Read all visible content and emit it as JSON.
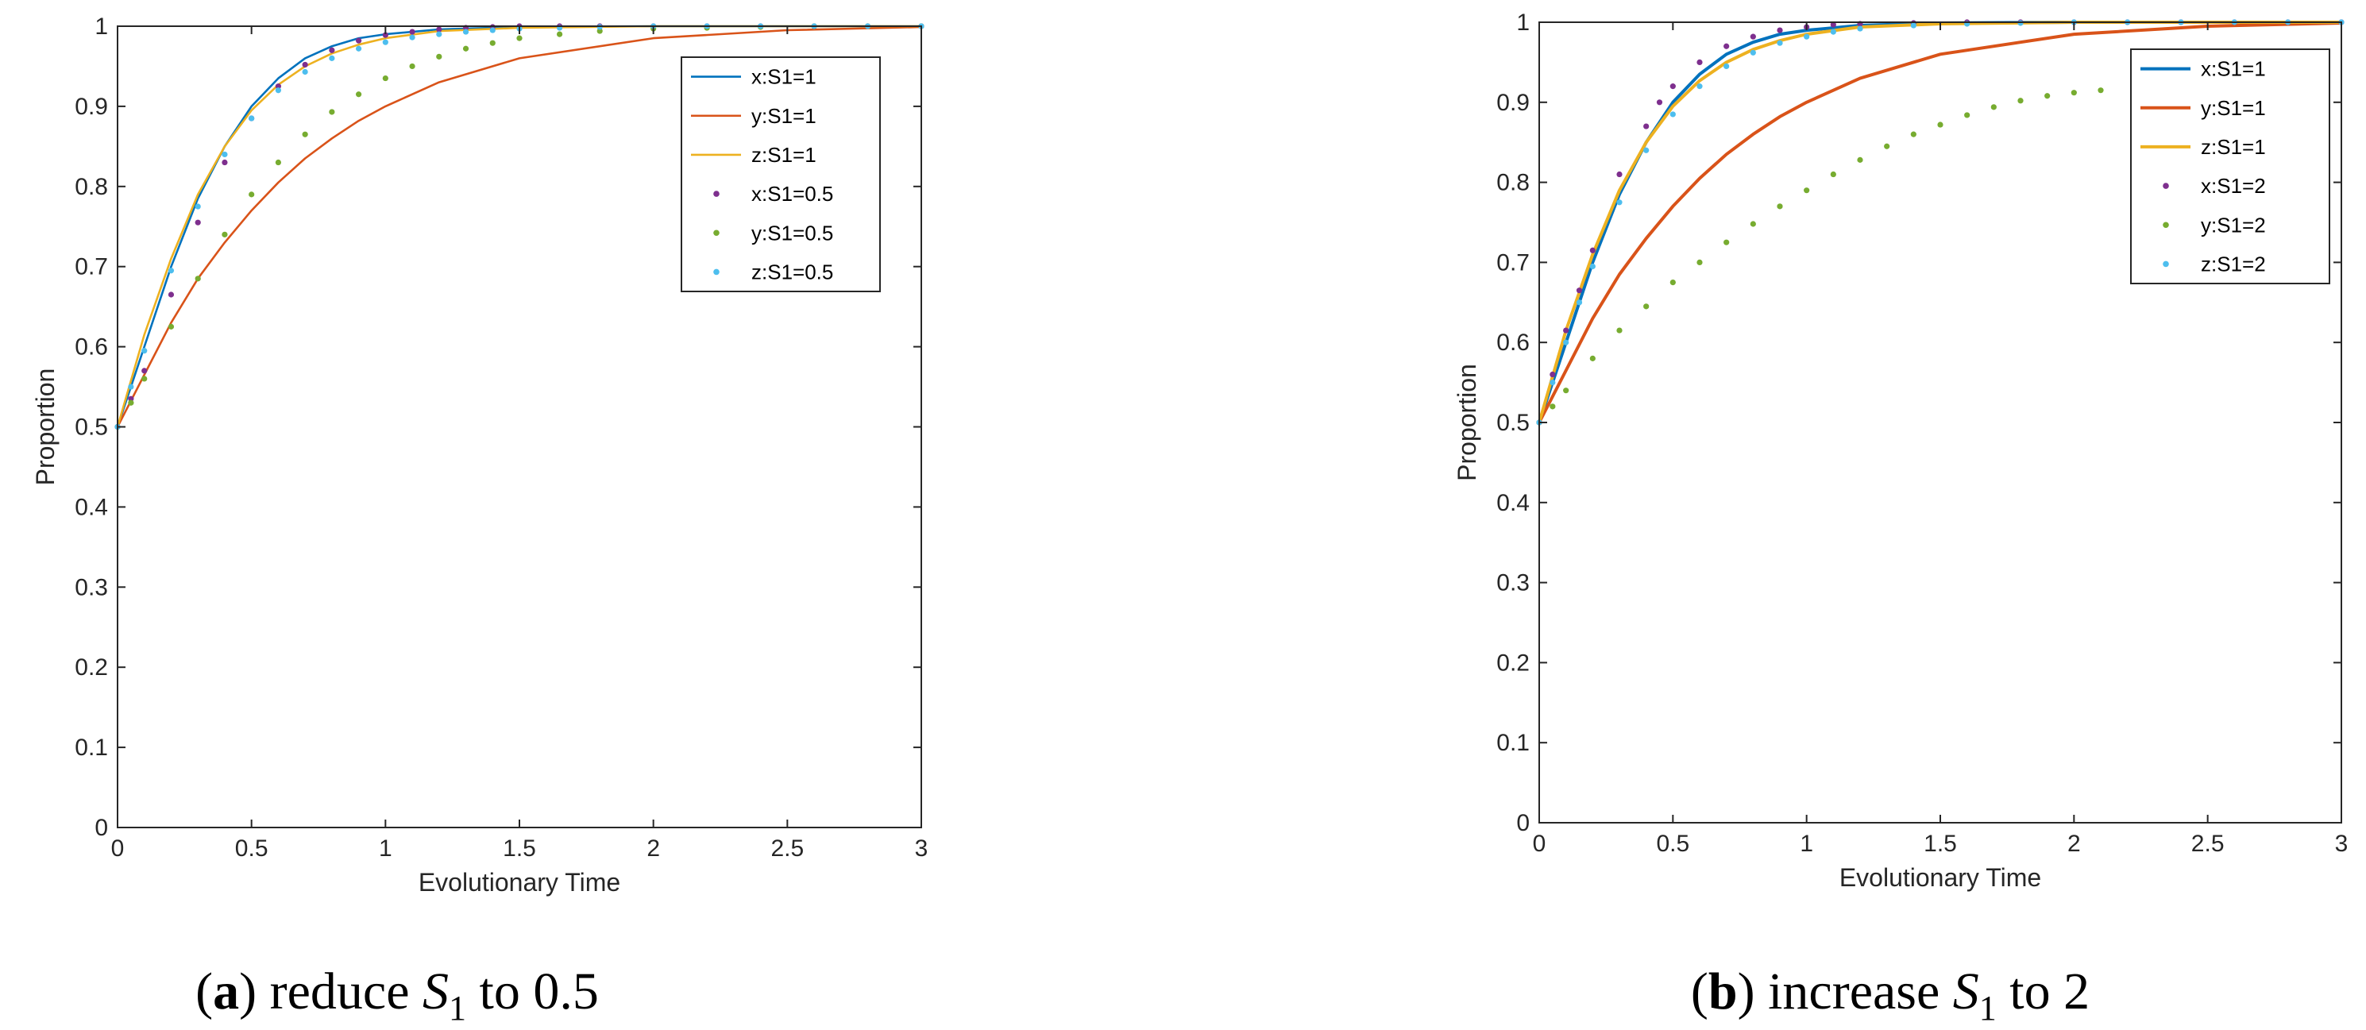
{
  "captions": [
    {
      "letter": "a",
      "text": " reduce ",
      "var": "S",
      "sub": "1",
      "tail": " to 0.5"
    },
    {
      "letter": "b",
      "text": " increase ",
      "var": "S",
      "sub": "1",
      "tail": " to 2"
    }
  ],
  "chart_data": [
    {
      "type": "line",
      "xlabel": "Evolutionary Time",
      "ylabel": "Proportion",
      "xlim": [
        0,
        3
      ],
      "ylim": [
        0,
        1
      ],
      "xticks": [
        "0",
        "0.5",
        "1",
        "1.5",
        "2",
        "2.5",
        "3"
      ],
      "yticks": [
        "0",
        "0.1",
        "0.2",
        "0.3",
        "0.4",
        "0.5",
        "0.6",
        "0.7",
        "0.8",
        "0.9",
        "1"
      ],
      "legend_position": "top-right",
      "series": [
        {
          "name": "x:S1=1",
          "style": "line",
          "color": "#0072BD",
          "x": [
            0,
            0.1,
            0.2,
            0.3,
            0.4,
            0.5,
            0.6,
            0.7,
            0.8,
            0.9,
            1.0,
            1.2,
            1.5,
            2.0,
            2.5,
            3.0
          ],
          "y": [
            0.5,
            0.6,
            0.7,
            0.785,
            0.85,
            0.9,
            0.935,
            0.96,
            0.975,
            0.985,
            0.99,
            0.996,
            0.999,
            1.0,
            1.0,
            1.0
          ]
        },
        {
          "name": "y:S1=1",
          "style": "line",
          "color": "#D95319",
          "x": [
            0,
            0.1,
            0.2,
            0.3,
            0.4,
            0.5,
            0.6,
            0.7,
            0.8,
            0.9,
            1.0,
            1.2,
            1.5,
            2.0,
            2.5,
            3.0
          ],
          "y": [
            0.5,
            0.565,
            0.63,
            0.685,
            0.73,
            0.77,
            0.805,
            0.835,
            0.86,
            0.882,
            0.9,
            0.93,
            0.96,
            0.985,
            0.995,
            0.999
          ]
        },
        {
          "name": "z:S1=1",
          "style": "line",
          "color": "#EDB120",
          "x": [
            0,
            0.1,
            0.2,
            0.3,
            0.4,
            0.5,
            0.6,
            0.7,
            0.8,
            0.9,
            1.0,
            1.2,
            1.5,
            2.0,
            2.5,
            3.0
          ],
          "y": [
            0.5,
            0.615,
            0.71,
            0.79,
            0.85,
            0.895,
            0.927,
            0.95,
            0.966,
            0.977,
            0.985,
            0.994,
            0.998,
            1.0,
            1.0,
            1.0
          ]
        },
        {
          "name": "x:S1=0.5",
          "style": "dots",
          "color": "#7E2F8E",
          "x": [
            0,
            0.05,
            0.1,
            0.2,
            0.3,
            0.4,
            0.5,
            0.6,
            0.7,
            0.8,
            0.9,
            1.0,
            1.1,
            1.2,
            1.3,
            1.4,
            1.5,
            1.65,
            1.8,
            2.0,
            2.2,
            2.4,
            2.6,
            2.8,
            3.0
          ],
          "y": [
            0.5,
            0.535,
            0.57,
            0.665,
            0.755,
            0.83,
            0.885,
            0.925,
            0.952,
            0.97,
            0.982,
            0.989,
            0.993,
            0.996,
            0.998,
            0.999,
            1.0,
            1.0,
            1.0,
            1.0,
            1.0,
            1.0,
            1.0,
            1.0,
            1.0
          ]
        },
        {
          "name": "y:S1=0.5",
          "style": "dots",
          "color": "#77AC30",
          "x": [
            0,
            0.05,
            0.1,
            0.2,
            0.3,
            0.4,
            0.5,
            0.6,
            0.7,
            0.8,
            0.9,
            1.0,
            1.1,
            1.2,
            1.3,
            1.4,
            1.5,
            1.65,
            1.8,
            2.0,
            2.2,
            2.4,
            2.6,
            2.8,
            3.0
          ],
          "y": [
            0.5,
            0.53,
            0.56,
            0.625,
            0.685,
            0.74,
            0.79,
            0.83,
            0.865,
            0.893,
            0.915,
            0.935,
            0.95,
            0.962,
            0.972,
            0.979,
            0.985,
            0.99,
            0.994,
            0.997,
            0.998,
            0.999,
            1.0,
            1.0,
            1.0
          ]
        },
        {
          "name": "z:S1=0.5",
          "style": "dots",
          "color": "#4DBEEE",
          "x": [
            0,
            0.05,
            0.1,
            0.2,
            0.3,
            0.4,
            0.5,
            0.6,
            0.7,
            0.8,
            0.9,
            1.0,
            1.1,
            1.2,
            1.3,
            1.4,
            1.5,
            1.65,
            1.8,
            2.0,
            2.2,
            2.4,
            2.6,
            2.8,
            3.0
          ],
          "y": [
            0.5,
            0.55,
            0.595,
            0.695,
            0.775,
            0.84,
            0.885,
            0.92,
            0.943,
            0.96,
            0.972,
            0.98,
            0.986,
            0.99,
            0.993,
            0.995,
            0.997,
            0.998,
            0.999,
            1.0,
            1.0,
            1.0,
            1.0,
            1.0,
            1.0
          ]
        }
      ]
    },
    {
      "type": "line",
      "xlabel": "Evolutionary Time",
      "ylabel": "Proportion",
      "xlim": [
        0,
        3
      ],
      "ylim": [
        0,
        1
      ],
      "xticks": [
        "0",
        "0.5",
        "1",
        "1.5",
        "2",
        "2.5",
        "3"
      ],
      "yticks": [
        "0",
        "0.1",
        "0.2",
        "0.3",
        "0.4",
        "0.5",
        "0.6",
        "0.7",
        "0.8",
        "0.9",
        "1"
      ],
      "legend_position": "top-right",
      "series": [
        {
          "name": "x:S1=1",
          "style": "line",
          "color": "#0072BD",
          "x": [
            0,
            0.1,
            0.2,
            0.3,
            0.4,
            0.5,
            0.6,
            0.7,
            0.8,
            0.9,
            1.0,
            1.2,
            1.5,
            2.0,
            2.5,
            3.0
          ],
          "y": [
            0.5,
            0.6,
            0.7,
            0.785,
            0.85,
            0.9,
            0.935,
            0.96,
            0.975,
            0.985,
            0.99,
            0.996,
            0.999,
            1.0,
            1.0,
            1.0
          ]
        },
        {
          "name": "y:S1=1",
          "style": "line",
          "color": "#D95319",
          "x": [
            0,
            0.1,
            0.2,
            0.3,
            0.4,
            0.5,
            0.6,
            0.7,
            0.8,
            0.9,
            1.0,
            1.2,
            1.5,
            2.0,
            2.5,
            3.0
          ],
          "y": [
            0.5,
            0.565,
            0.63,
            0.685,
            0.73,
            0.77,
            0.805,
            0.835,
            0.86,
            0.882,
            0.9,
            0.93,
            0.96,
            0.985,
            0.995,
            0.999
          ]
        },
        {
          "name": "z:S1=1",
          "style": "line",
          "color": "#EDB120",
          "x": [
            0,
            0.1,
            0.2,
            0.3,
            0.4,
            0.5,
            0.6,
            0.7,
            0.8,
            0.9,
            1.0,
            1.2,
            1.5,
            2.0,
            2.5,
            3.0
          ],
          "y": [
            0.5,
            0.615,
            0.71,
            0.79,
            0.85,
            0.895,
            0.927,
            0.95,
            0.966,
            0.977,
            0.985,
            0.994,
            0.998,
            1.0,
            1.0,
            1.0
          ]
        },
        {
          "name": "x:S1=2",
          "style": "dots",
          "color": "#7E2F8E",
          "x": [
            0,
            0.05,
            0.1,
            0.15,
            0.2,
            0.3,
            0.4,
            0.45,
            0.5,
            0.6,
            0.7,
            0.8,
            0.9,
            1.0,
            1.1,
            1.2,
            1.4,
            1.6,
            1.8,
            2.0,
            2.2,
            2.4,
            2.6,
            2.8,
            3.0
          ],
          "y": [
            0.5,
            0.56,
            0.615,
            0.665,
            0.715,
            0.81,
            0.87,
            0.9,
            0.92,
            0.95,
            0.97,
            0.982,
            0.99,
            0.994,
            0.997,
            0.998,
            0.999,
            1.0,
            1.0,
            1.0,
            1.0,
            1.0,
            1.0,
            1.0,
            1.0
          ]
        },
        {
          "name": "y:S1=2",
          "style": "dots",
          "color": "#77AC30",
          "x": [
            0,
            0.05,
            0.1,
            0.2,
            0.3,
            0.4,
            0.5,
            0.6,
            0.7,
            0.8,
            0.9,
            1.0,
            1.1,
            1.2,
            1.3,
            1.4,
            1.5,
            1.6,
            1.7,
            1.8,
            1.9,
            2.0,
            2.1
          ],
          "y": [
            0.5,
            0.52,
            0.54,
            0.58,
            0.615,
            0.645,
            0.675,
            0.7,
            0.725,
            0.748,
            0.77,
            0.79,
            0.81,
            0.828,
            0.845,
            0.86,
            0.872,
            0.884,
            0.894,
            0.902,
            0.908,
            0.912,
            0.915
          ]
        },
        {
          "name": "z:S1=2",
          "style": "dots",
          "color": "#4DBEEE",
          "x": [
            0,
            0.05,
            0.1,
            0.15,
            0.2,
            0.3,
            0.4,
            0.5,
            0.6,
            0.7,
            0.8,
            0.9,
            1.0,
            1.1,
            1.2,
            1.4,
            1.6,
            1.8,
            2.0,
            2.2,
            2.4,
            2.6,
            2.8,
            3.0
          ],
          "y": [
            0.5,
            0.55,
            0.6,
            0.65,
            0.695,
            0.775,
            0.84,
            0.885,
            0.92,
            0.945,
            0.962,
            0.974,
            0.982,
            0.988,
            0.992,
            0.996,
            0.998,
            0.999,
            1.0,
            1.0,
            1.0,
            1.0,
            1.0,
            1.0
          ]
        }
      ]
    }
  ]
}
